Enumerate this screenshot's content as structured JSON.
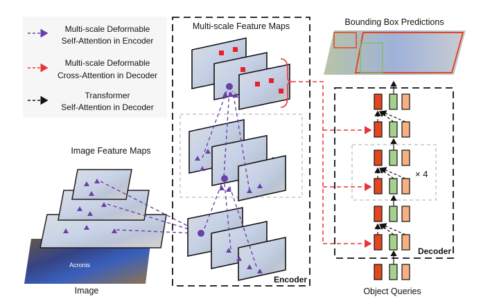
{
  "legend": {
    "items": [
      {
        "line1": "Multi-scale Deformable",
        "line2": "Self-Attention in Encoder",
        "color": "#6a3fa8"
      },
      {
        "line1": "Multi-scale Deformable",
        "line2": "Cross-Attention in Decoder",
        "color": "#e8333c"
      },
      {
        "line1": "Transformer",
        "line2": "Self-Attention in Decoder",
        "color": "#111111"
      }
    ]
  },
  "encoder": {
    "title": "Multi-scale Feature Maps",
    "label": "Encoder",
    "repeat": "× 4"
  },
  "image_features": {
    "title": "Image Feature Maps"
  },
  "image": {
    "label": "Image",
    "jersey_text": "Acronis"
  },
  "predictions": {
    "title": "Bounding Box Predictions"
  },
  "decoder": {
    "label": "Decoder",
    "repeat": "× 4",
    "queries_label": "Object Queries"
  },
  "colors": {
    "query_red": "#e2471f",
    "query_green": "#a8d08d",
    "query_orange": "#f4b183",
    "encoder_arrow": "#6a3fa8",
    "decoder_arrow": "#e8333c"
  }
}
